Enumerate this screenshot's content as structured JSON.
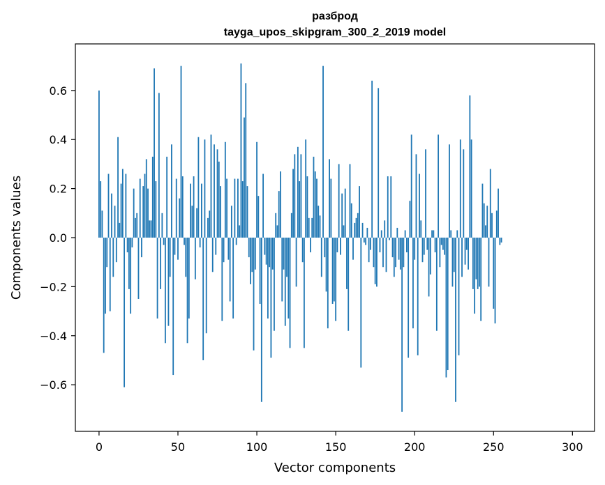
{
  "chart_data": {
    "type": "bar",
    "title": "разброд",
    "subtitle": "tayga_upos_skipgram_300_2_2019 model",
    "xlabel": "Vector components",
    "ylabel": "Components values",
    "xlim": [
      -15,
      314
    ],
    "ylim": [
      -0.79,
      0.79
    ],
    "xticks": [
      0,
      50,
      100,
      150,
      200,
      250,
      300
    ],
    "yticks": [
      -0.6,
      -0.4,
      -0.2,
      0.0,
      0.2,
      0.4,
      0.6
    ],
    "ytick_labels": [
      "−0.6",
      "−0.4",
      "−0.2",
      "0.0",
      "0.2",
      "0.4",
      "0.6"
    ],
    "bar_color": "#1f77b4",
    "grid": false,
    "values": [
      0.6,
      0.23,
      0.11,
      -0.47,
      -0.31,
      -0.12,
      0.26,
      -0.3,
      0.18,
      -0.16,
      0.13,
      -0.1,
      0.41,
      0.06,
      0.22,
      0.28,
      -0.61,
      0.26,
      -0.06,
      -0.21,
      -0.31,
      -0.04,
      0.2,
      0.08,
      0.1,
      -0.25,
      0.24,
      -0.08,
      0.21,
      0.26,
      0.32,
      0.2,
      0.07,
      0.07,
      0.33,
      0.69,
      0.23,
      -0.33,
      0.59,
      -0.21,
      0.1,
      -0.03,
      -0.43,
      0.33,
      -0.36,
      -0.16,
      0.38,
      -0.56,
      -0.07,
      0.24,
      -0.09,
      0.16,
      0.7,
      0.25,
      -0.03,
      -0.16,
      -0.43,
      -0.33,
      0.22,
      0.13,
      0.25,
      -0.17,
      0.12,
      0.41,
      -0.04,
      0.22,
      -0.5,
      0.4,
      -0.39,
      0.08,
      0.11,
      0.42,
      -0.14,
      0.38,
      -0.07,
      0.36,
      0.31,
      0.21,
      -0.34,
      -0.1,
      0.39,
      0.24,
      -0.09,
      -0.26,
      0.13,
      -0.33,
      0.24,
      -0.03,
      0.24,
      0.05,
      0.71,
      0.23,
      0.49,
      0.63,
      0.21,
      -0.08,
      -0.19,
      -0.14,
      -0.46,
      -0.13,
      0.39,
      0.17,
      -0.27,
      -0.67,
      0.26,
      -0.07,
      -0.11,
      -0.33,
      -0.12,
      -0.49,
      -0.13,
      -0.38,
      0.1,
      0.05,
      0.19,
      0.27,
      -0.26,
      -0.13,
      -0.36,
      -0.16,
      -0.33,
      -0.45,
      0.1,
      0.28,
      0.34,
      -0.2,
      0.37,
      0.23,
      0.34,
      -0.1,
      -0.45,
      0.4,
      0.25,
      0.08,
      -0.06,
      0.08,
      0.33,
      0.27,
      0.24,
      0.13,
      0.09,
      -0.16,
      0.7,
      -0.08,
      -0.22,
      -0.37,
      0.32,
      0.24,
      -0.27,
      -0.26,
      -0.34,
      -0.06,
      0.3,
      -0.07,
      0.18,
      0.05,
      0.2,
      -0.21,
      -0.38,
      0.3,
      0.14,
      -0.09,
      0.06,
      0.08,
      0.1,
      0.21,
      -0.53,
      0.06,
      -0.02,
      -0.03,
      0.04,
      -0.1,
      -0.05,
      0.64,
      -0.12,
      -0.19,
      -0.2,
      0.61,
      -0.06,
      0.03,
      -0.12,
      0.07,
      -0.14,
      0.25,
      -0.01,
      0.25,
      -0.08,
      -0.16,
      -0.12,
      0.04,
      -0.09,
      -0.13,
      -0.71,
      -0.12,
      0.03,
      -0.06,
      -0.49,
      0.15,
      0.42,
      -0.37,
      -0.09,
      0.34,
      -0.48,
      0.26,
      0.07,
      -0.1,
      -0.07,
      0.36,
      -0.05,
      -0.24,
      -0.15,
      0.03,
      0.03,
      -0.06,
      -0.38,
      0.42,
      -0.12,
      -0.03,
      -0.05,
      -0.07,
      -0.57,
      -0.54,
      0.38,
      0.03,
      -0.2,
      -0.14,
      -0.67,
      0.03,
      -0.48,
      0.4,
      -0.16,
      0.36,
      -0.11,
      -0.05,
      -0.13,
      0.58,
      0.4,
      -0.21,
      -0.31,
      -0.17,
      -0.21,
      -0.2,
      -0.34,
      0.22,
      0.14,
      0.05,
      0.13,
      -0.2,
      0.28,
      0.1,
      -0.29,
      -0.35,
      0.11,
      0.2,
      -0.03,
      -0.02
    ]
  }
}
